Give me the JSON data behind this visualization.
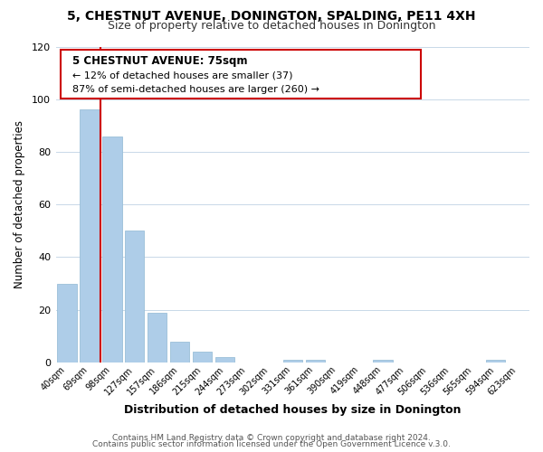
{
  "title": "5, CHESTNUT AVENUE, DONINGTON, SPALDING, PE11 4XH",
  "subtitle": "Size of property relative to detached houses in Donington",
  "xlabel": "Distribution of detached houses by size in Donington",
  "ylabel": "Number of detached properties",
  "bar_labels": [
    "40sqm",
    "69sqm",
    "98sqm",
    "127sqm",
    "157sqm",
    "186sqm",
    "215sqm",
    "244sqm",
    "273sqm",
    "302sqm",
    "331sqm",
    "361sqm",
    "390sqm",
    "419sqm",
    "448sqm",
    "477sqm",
    "506sqm",
    "536sqm",
    "565sqm",
    "594sqm",
    "623sqm"
  ],
  "bar_values": [
    30,
    96,
    86,
    50,
    19,
    8,
    4,
    2,
    0,
    0,
    1,
    1,
    0,
    0,
    1,
    0,
    0,
    0,
    0,
    1,
    0
  ],
  "bar_color": "#aecde8",
  "bar_edge_color": "#9bbfd8",
  "marker_color": "#cc0000",
  "annotation_title": "5 CHESTNUT AVENUE: 75sqm",
  "annotation_line1": "← 12% of detached houses are smaller (37)",
  "annotation_line2": "87% of semi-detached houses are larger (260) →",
  "annotation_box_color": "#ffffff",
  "annotation_box_edge": "#cc0000",
  "ylim": [
    0,
    120
  ],
  "yticks": [
    0,
    20,
    40,
    60,
    80,
    100,
    120
  ],
  "footer1": "Contains HM Land Registry data © Crown copyright and database right 2024.",
  "footer2": "Contains public sector information licensed under the Open Government Licence v.3.0.",
  "background_color": "#ffffff",
  "grid_color": "#c8d8e8"
}
